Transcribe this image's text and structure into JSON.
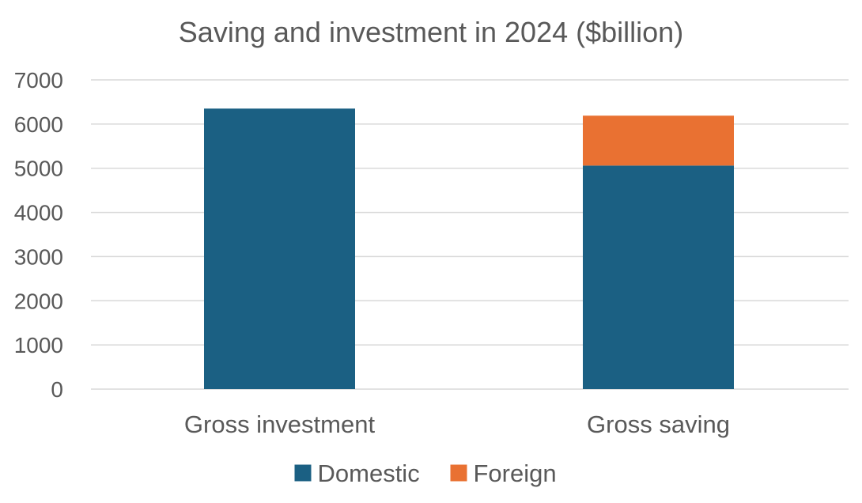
{
  "chart_data": {
    "type": "bar",
    "stacked": true,
    "title": "Saving and investment in 2024 ($billion)",
    "xlabel": "",
    "ylabel": "",
    "categories": [
      "Gross investment",
      "Gross saving"
    ],
    "series": [
      {
        "name": "Domestic",
        "values": [
          6350,
          5060
        ],
        "color": "#1b6083"
      },
      {
        "name": "Foreign",
        "values": [
          0,
          1130
        ],
        "color": "#e97132"
      }
    ],
    "ylim": [
      0,
      7000
    ],
    "yticks": [
      "0",
      "1000",
      "2000",
      "3000",
      "4000",
      "5000",
      "6000",
      "7000"
    ],
    "grid": true,
    "legend_position": "bottom"
  }
}
